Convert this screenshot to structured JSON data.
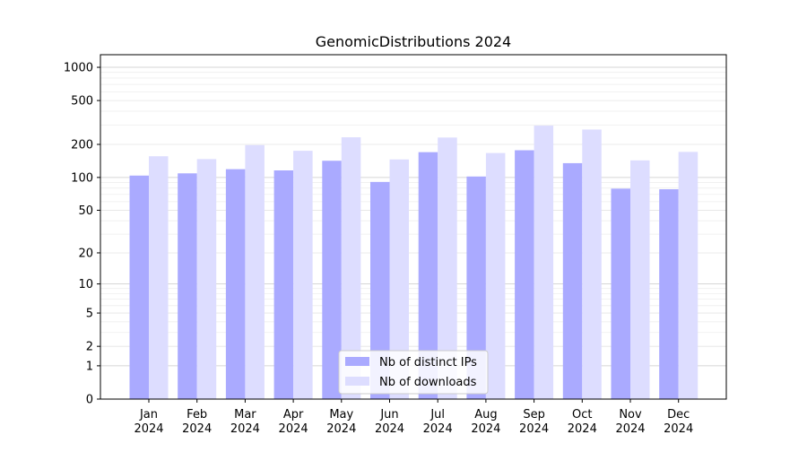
{
  "chart_data": {
    "type": "bar",
    "title": "GenomicDistributions 2024",
    "xlabel": "",
    "ylabel": "",
    "yscale": "log(1+y)",
    "ylim": [
      0,
      1300
    ],
    "grid": "horizontal",
    "legend_position": "lower-center",
    "categories": [
      [
        "Jan",
        "2024"
      ],
      [
        "Feb",
        "2024"
      ],
      [
        "Mar",
        "2024"
      ],
      [
        "Apr",
        "2024"
      ],
      [
        "May",
        "2024"
      ],
      [
        "Jun",
        "2024"
      ],
      [
        "Jul",
        "2024"
      ],
      [
        "Aug",
        "2024"
      ],
      [
        "Sep",
        "2024"
      ],
      [
        "Oct",
        "2024"
      ],
      [
        "Nov",
        "2024"
      ],
      [
        "Dec",
        "2024"
      ]
    ],
    "yticks": [
      0,
      1,
      2,
      5,
      10,
      20,
      50,
      100,
      200,
      500,
      1000
    ],
    "series": [
      {
        "name": "Nb of distinct IPs",
        "color": "#aaaaff",
        "values": [
          104,
          109,
          119,
          116,
          142,
          91,
          170,
          102,
          177,
          135,
          79,
          78
        ]
      },
      {
        "name": "Nb of downloads",
        "color": "#ddddff",
        "values": [
          156,
          147,
          197,
          175,
          232,
          146,
          231,
          167,
          296,
          273,
          143,
          171
        ]
      }
    ]
  }
}
